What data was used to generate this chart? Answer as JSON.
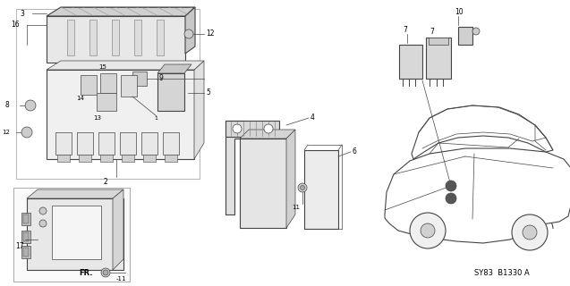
{
  "background_color": "#ffffff",
  "line_color": "#444444",
  "diagram_id": "SY83  B1330 A",
  "figsize": [
    6.37,
    3.2
  ],
  "dpi": 100
}
